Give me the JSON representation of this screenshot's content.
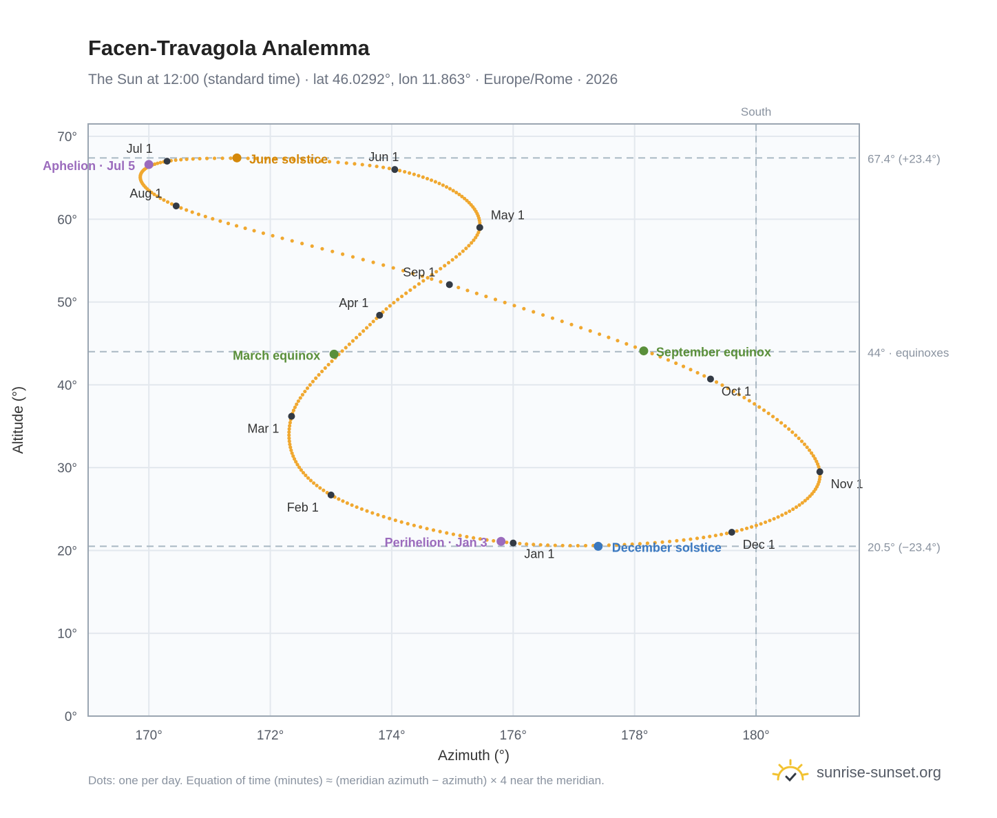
{
  "title": "Facen-Travagola Analemma",
  "subtitle": "The Sun at 12:00 (standard time) · lat 46.0292°, lon 11.863° · Europe/Rome · 2026",
  "footnote": "Dots: one per day. Equation of time (minutes) ≈ (meridian azimuth − azimuth) × 4 near the meridian.",
  "brand": {
    "text": "sunrise-sunset.org",
    "icon": "sun-logo-icon",
    "color": "#f2c230"
  },
  "colors": {
    "curve": "#f0a830",
    "month_marker": "#333a44",
    "solstice_june": "#d4880a",
    "equinox": "#5a8f3a",
    "solstice_december": "#3a78c0",
    "apsis": "#9b6bbd",
    "reference_line": "#a9b8c3",
    "plot_background": "#f9fbfd",
    "grid": "#e3e8ee",
    "frame": "#9aa5b1"
  },
  "chart_data": {
    "type": "scatter",
    "title": "Facen-Travagola Analemma",
    "xlabel": "Azimuth (°)",
    "ylabel": "Altitude (°)",
    "xlim": [
      169.0,
      181.7
    ],
    "ylim": [
      0,
      71.5
    ],
    "grid": true,
    "x_ticks": [
      {
        "value": 170,
        "label": "170°"
      },
      {
        "value": 172,
        "label": "172°"
      },
      {
        "value": 174,
        "label": "174°"
      },
      {
        "value": 176,
        "label": "176°"
      },
      {
        "value": 178,
        "label": "178°"
      },
      {
        "value": 180,
        "label": "180°"
      }
    ],
    "y_ticks": [
      {
        "value": 0,
        "label": "0°"
      },
      {
        "value": 10,
        "label": "10°"
      },
      {
        "value": 20,
        "label": "20°"
      },
      {
        "value": 30,
        "label": "30°"
      },
      {
        "value": 40,
        "label": "40°"
      },
      {
        "value": 50,
        "label": "50°"
      },
      {
        "value": 60,
        "label": "60°"
      },
      {
        "value": 70,
        "label": "70°"
      }
    ],
    "reference_lines": {
      "vertical": [
        {
          "value": 180,
          "label": "South"
        }
      ],
      "horizontal": [
        {
          "value": 67.4,
          "label": "67.4° (+23.4°)"
        },
        {
          "value": 44.0,
          "label": "44° · equinoxes"
        },
        {
          "value": 20.5,
          "label": "20.5° (−23.4°)"
        }
      ]
    },
    "month_markers": [
      {
        "label": "Jan 1",
        "azimuth": 176.0,
        "altitude": 20.9
      },
      {
        "label": "Feb 1",
        "azimuth": 173.0,
        "altitude": 26.7
      },
      {
        "label": "Mar 1",
        "azimuth": 172.35,
        "altitude": 36.2
      },
      {
        "label": "Apr 1",
        "azimuth": 173.8,
        "altitude": 48.4
      },
      {
        "label": "May 1",
        "azimuth": 175.45,
        "altitude": 59.0
      },
      {
        "label": "Jun 1",
        "azimuth": 174.05,
        "altitude": 66.0
      },
      {
        "label": "Jul 1",
        "azimuth": 170.3,
        "altitude": 67.0
      },
      {
        "label": "Aug 1",
        "azimuth": 170.45,
        "altitude": 61.6
      },
      {
        "label": "Sep 1",
        "azimuth": 174.95,
        "altitude": 52.1
      },
      {
        "label": "Oct 1",
        "azimuth": 179.25,
        "altitude": 40.7
      },
      {
        "label": "Nov 1",
        "azimuth": 181.05,
        "altitude": 29.5
      },
      {
        "label": "Dec 1",
        "azimuth": 179.6,
        "altitude": 22.2
      }
    ],
    "events": [
      {
        "label": "June solstice",
        "azimuth": 171.45,
        "altitude": 67.4,
        "color": "#d4880a"
      },
      {
        "label": "Aphelion · Jul 5",
        "azimuth": 170.0,
        "altitude": 66.6,
        "color": "#9b6bbd"
      },
      {
        "label": "March equinox",
        "azimuth": 173.05,
        "altitude": 43.7,
        "color": "#5a8f3a"
      },
      {
        "label": "September equinox",
        "azimuth": 178.15,
        "altitude": 44.1,
        "color": "#5a8f3a"
      },
      {
        "label": "Perihelion · Jan 3",
        "azimuth": 175.8,
        "altitude": 21.1,
        "color": "#9b6bbd"
      },
      {
        "label": "December solstice",
        "azimuth": 177.4,
        "altitude": 20.5,
        "color": "#3a78c0"
      }
    ]
  }
}
